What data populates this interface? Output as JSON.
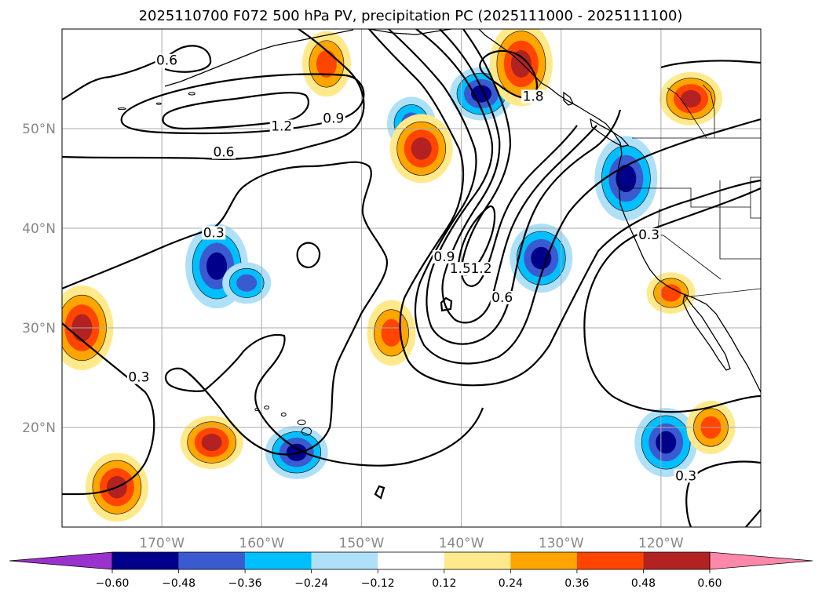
{
  "chart_data": {
    "type": "contour-map",
    "title": "2025110700 F072 500 hPa PV, precipitation PC (2025111000 - 2025111100)",
    "lon_range": [
      -180,
      -110
    ],
    "lat_range": [
      10,
      60
    ],
    "lon_ticks": [
      {
        "value": -170,
        "label": "170°W"
      },
      {
        "value": -160,
        "label": "160°W"
      },
      {
        "value": -150,
        "label": "150°W"
      },
      {
        "value": -140,
        "label": "140°W"
      },
      {
        "value": -130,
        "label": "130°W"
      },
      {
        "value": -120,
        "label": "120°W"
      }
    ],
    "lat_ticks": [
      {
        "value": 50,
        "label": "50°N"
      },
      {
        "value": 40,
        "label": "40°N"
      },
      {
        "value": 30,
        "label": "30°N"
      },
      {
        "value": 20,
        "label": "20°N"
      }
    ],
    "grid": true,
    "colorbar": {
      "levels": [
        -0.6,
        -0.48,
        -0.36,
        -0.24,
        -0.12,
        0.12,
        0.24,
        0.36,
        0.48,
        0.6
      ],
      "tick_labels": [
        "−0.60",
        "−0.48",
        "−0.36",
        "−0.24",
        "−0.12",
        "0.12",
        "0.24",
        "0.36",
        "0.48",
        "0.60"
      ],
      "colors": [
        "#9932cc",
        "#00008b",
        "#3a5bd0",
        "#00bfff",
        "#aee0f8",
        "#ffffff",
        "#ffe98a",
        "#ffa500",
        "#ff4500",
        "#b22222",
        "#ff88aa"
      ],
      "extend": "both"
    },
    "pv_contour_labels": [
      {
        "text": "0.6",
        "lon": -169.5,
        "lat": 56.4
      },
      {
        "text": "1.2",
        "lon": -158.0,
        "lat": 49.8
      },
      {
        "text": "0.9",
        "lon": -152.8,
        "lat": 50.6
      },
      {
        "text": "0.6",
        "lon": -163.8,
        "lat": 47.2
      },
      {
        "text": "0.3",
        "lon": -164.8,
        "lat": 39.1
      },
      {
        "text": "0.3",
        "lon": -172.3,
        "lat": 24.6
      },
      {
        "text": "0.9",
        "lon": -141.7,
        "lat": 36.7
      },
      {
        "text": "1.5",
        "lon": -140.1,
        "lat": 35.5
      },
      {
        "text": "1.2",
        "lon": -138.0,
        "lat": 35.5
      },
      {
        "text": "0.6",
        "lon": -135.9,
        "lat": 32.6
      },
      {
        "text": "0.3",
        "lon": -121.2,
        "lat": 38.9
      },
      {
        "text": "0.3",
        "lon": -117.5,
        "lat": 14.7
      },
      {
        "text": "1.8",
        "lon": -132.8,
        "lat": 52.8
      }
    ],
    "precip_pc_anomalies": [
      {
        "sign": "negative",
        "lon": -138.0,
        "lat": 53.5,
        "peak": -0.48
      },
      {
        "sign": "negative",
        "lon": -132.0,
        "lat": 37.0,
        "peak": -0.48
      },
      {
        "sign": "negative",
        "lon": -123.5,
        "lat": 45.0,
        "peak": -0.48
      },
      {
        "sign": "negative",
        "lon": -156.5,
        "lat": 17.5,
        "peak": -0.48
      },
      {
        "sign": "negative",
        "lon": -119.5,
        "lat": 18.5,
        "peak": -0.48
      },
      {
        "sign": "negative",
        "lon": -164.5,
        "lat": 36.2,
        "peak": -0.48
      },
      {
        "sign": "negative",
        "lon": -161.5,
        "lat": 34.5,
        "peak": -0.36
      },
      {
        "sign": "negative",
        "lon": -145.0,
        "lat": 50.5,
        "peak": -0.36
      },
      {
        "sign": "positive",
        "lon": -134.0,
        "lat": 56.5,
        "peak": 0.48
      },
      {
        "sign": "positive",
        "lon": -117.0,
        "lat": 53.0,
        "peak": 0.48
      },
      {
        "sign": "positive",
        "lon": -144.0,
        "lat": 48.0,
        "peak": 0.48
      },
      {
        "sign": "positive",
        "lon": -178.0,
        "lat": 30.0,
        "peak": 0.48
      },
      {
        "sign": "positive",
        "lon": -165.0,
        "lat": 18.5,
        "peak": 0.48
      },
      {
        "sign": "positive",
        "lon": -174.5,
        "lat": 14.0,
        "peak": 0.48
      },
      {
        "sign": "positive",
        "lon": -147.0,
        "lat": 29.5,
        "peak": 0.36
      },
      {
        "sign": "positive",
        "lon": -119.0,
        "lat": 33.5,
        "peak": 0.36
      },
      {
        "sign": "positive",
        "lon": -115.0,
        "lat": 20.0,
        "peak": 0.36
      },
      {
        "sign": "positive",
        "lon": -153.5,
        "lat": 56.5,
        "peak": 0.36
      }
    ]
  }
}
